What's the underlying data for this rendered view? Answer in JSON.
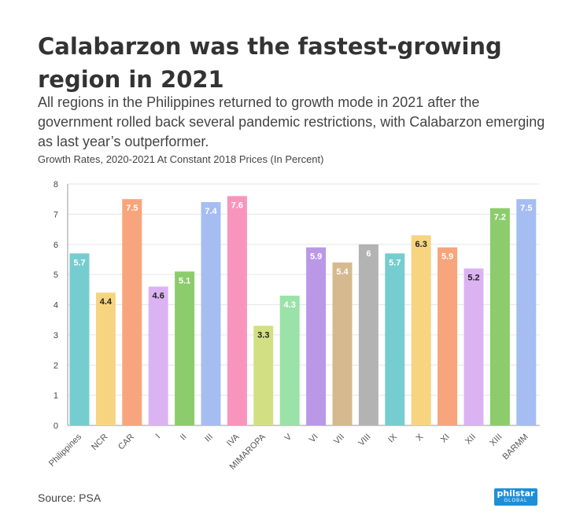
{
  "header": {
    "title": "Calabarzon was the fastest-growing region in 2021",
    "subtitle": "All regions in the Philippines returned to growth mode in 2021 after the government rolled back several pandemic restrictions, with Calabarzon emerging as last year’s outperformer.",
    "chart_note": "Growth Rates, 2020-2021 At Constant 2018 Prices (In Percent)"
  },
  "footer": {
    "source": "Source: PSA",
    "logo_main": "philstar",
    "logo_sub": "GLOBAL"
  },
  "chart_data": {
    "type": "bar",
    "title": "",
    "xlabel": "",
    "ylabel": "",
    "ylim": [
      0,
      8
    ],
    "yticks": [
      0,
      1,
      2,
      3,
      4,
      5,
      6,
      7,
      8
    ],
    "grid": true,
    "legend": "none",
    "categories": [
      "Philippines",
      "NCR",
      "CAR",
      "I",
      "II",
      "III",
      "IVA",
      "MIMAROPA",
      "V",
      "VI",
      "VII",
      "VIII",
      "IX",
      "X",
      "XI",
      "XII",
      "XIII",
      "BARMM"
    ],
    "values": [
      5.7,
      4.4,
      7.5,
      4.6,
      5.1,
      7.4,
      7.6,
      3.3,
      4.3,
      5.9,
      5.4,
      6,
      5.7,
      6.3,
      5.9,
      5.2,
      7.2,
      7.5
    ],
    "value_labels": [
      "5.7",
      "4.4",
      "7.5",
      "4.6",
      "5.1",
      "7.4",
      "7.6",
      "3.3",
      "4.3",
      "5.9",
      "5.4",
      "6",
      "5.7",
      "6.3",
      "5.9",
      "5.2",
      "7.2",
      "7.5"
    ],
    "colors": [
      "#76cdd0",
      "#f7d480",
      "#f8a47c",
      "#dcb3f2",
      "#8ccc6c",
      "#a6bdf2",
      "#f895bd",
      "#d2df82",
      "#9be2a8",
      "#b998e8",
      "#d6b98e",
      "#b3b3b3",
      "#76cdd0",
      "#f7d480",
      "#f8a47c",
      "#dcb3f2",
      "#8ccc6c",
      "#a6bdf2"
    ],
    "label_colors": [
      "#ffffff",
      "#222222",
      "#ffffff",
      "#222222",
      "#ffffff",
      "#ffffff",
      "#ffffff",
      "#222222",
      "#ffffff",
      "#ffffff",
      "#ffffff",
      "#ffffff",
      "#ffffff",
      "#222222",
      "#ffffff",
      "#222222",
      "#ffffff",
      "#ffffff"
    ]
  }
}
